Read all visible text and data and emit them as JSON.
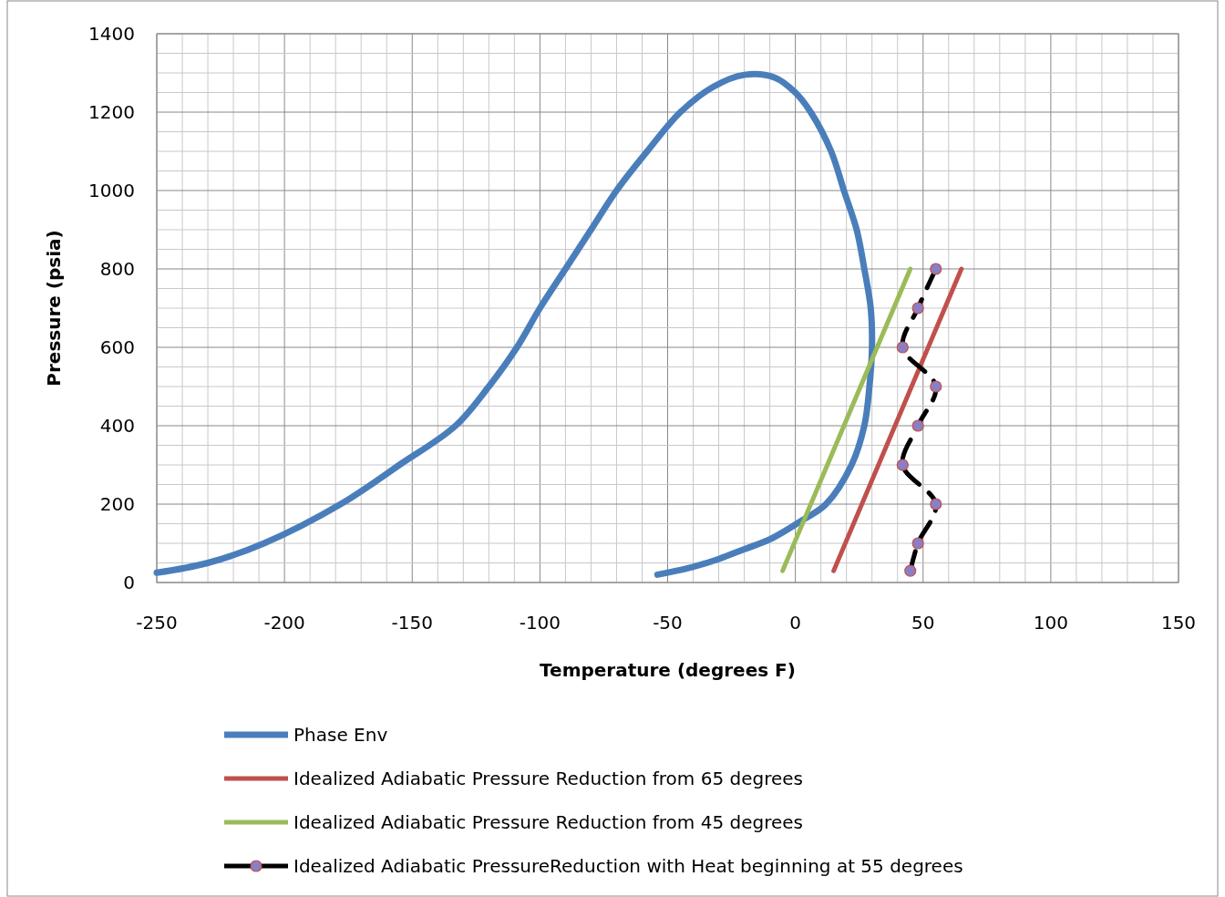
{
  "chart_data": {
    "type": "line",
    "xlabel": "Temperature (degrees F)",
    "ylabel": "Pressure (psia)",
    "xlim": [
      -250,
      150
    ],
    "ylim": [
      0,
      1400
    ],
    "xticks": [
      -250,
      {
        "value": -240,
        "label": null
      },
      {
        "value": -230,
        "label": null
      },
      {
        "value": -220,
        "label": null
      },
      {
        "value": -210,
        "label": null
      },
      -200,
      {
        "value": -190,
        "label": null
      },
      {
        "value": -180,
        "label": null
      },
      {
        "value": -170,
        "label": null
      },
      {
        "value": -160,
        "label": null
      },
      -150,
      {
        "value": -140,
        "label": null
      },
      {
        "value": -130,
        "label": null
      },
      {
        "value": -120,
        "label": null
      },
      {
        "value": -110,
        "label": null
      },
      -100,
      {
        "value": -90,
        "label": null
      },
      {
        "value": -80,
        "label": null
      },
      {
        "value": -70,
        "label": null
      },
      {
        "value": -60,
        "label": null
      },
      -50,
      {
        "value": -40,
        "label": null
      },
      {
        "value": -30,
        "label": null
      },
      {
        "value": -20,
        "label": null
      },
      {
        "value": -10,
        "label": null
      },
      0,
      {
        "value": 10,
        "label": null
      },
      {
        "value": 20,
        "label": null
      },
      {
        "value": 30,
        "label": null
      },
      {
        "value": 40,
        "label": null
      },
      50,
      {
        "value": 60,
        "label": null
      },
      {
        "value": 70,
        "label": null
      },
      {
        "value": 80,
        "label": null
      },
      {
        "value": 90,
        "label": null
      },
      100,
      {
        "value": 110,
        "label": null
      },
      {
        "value": 120,
        "label": null
      },
      {
        "value": 130,
        "label": null
      },
      {
        "value": 140,
        "label": null
      },
      150
    ],
    "yticks": [
      0,
      {
        "value": 50,
        "label": null
      },
      {
        "value": 100,
        "label": null
      },
      {
        "value": 150,
        "label": null
      },
      200,
      {
        "value": 250,
        "label": null
      },
      {
        "value": 300,
        "label": null
      },
      {
        "value": 350,
        "label": null
      },
      400,
      {
        "value": 450,
        "label": null
      },
      {
        "value": 500,
        "label": null
      },
      {
        "value": 550,
        "label": null
      },
      600,
      {
        "value": 650,
        "label": null
      },
      {
        "value": 700,
        "label": null
      },
      {
        "value": 750,
        "label": null
      },
      800,
      {
        "value": 850,
        "label": null
      },
      {
        "value": 900,
        "label": null
      },
      {
        "value": 950,
        "label": null
      },
      1000,
      {
        "value": 1050,
        "label": null
      },
      {
        "value": 1100,
        "label": null
      },
      {
        "value": 1150,
        "label": null
      },
      1200,
      {
        "value": 1250,
        "label": null
      },
      {
        "value": 1300,
        "label": null
      },
      {
        "value": 1350,
        "label": null
      },
      1400
    ],
    "grid": true,
    "legend": "bottom",
    "series": [
      {
        "name": "Phase Env",
        "color": "#4a7ebb",
        "x": [
          -250,
          -230,
          -208,
          -178,
          -155,
          -133,
          -120,
          -109,
          -100,
          -90,
          -80,
          -70,
          -58,
          -45,
          -32,
          -20,
          -8,
          0,
          6,
          14,
          19,
          24,
          27,
          29.5,
          30,
          29,
          27,
          22,
          12,
          3,
          -10,
          -20,
          -30,
          -40,
          -54
        ],
        "values": [
          25,
          50,
          100,
          200,
          300,
          400,
          500,
          600,
          700,
          800,
          900,
          1000,
          1100,
          1200,
          1265,
          1295,
          1288,
          1250,
          1200,
          1100,
          1000,
          900,
          800,
          700,
          600,
          500,
          400,
          300,
          200,
          160,
          110,
          85,
          60,
          40,
          20
        ]
      },
      {
        "name": "Idealized Adiabatic Pressure Reduction from 65 degrees",
        "color": "#c0504d",
        "x": [
          15,
          65
        ],
        "values": [
          30,
          800
        ]
      },
      {
        "name": "Idealized Adiabatic Pressure Reduction from 45 degrees",
        "color": "#9bbb59",
        "x": [
          -5,
          45
        ],
        "values": [
          30,
          800
        ]
      },
      {
        "name": "Idealized Adiabatic PressureReduction with Heat beginning at 55 degrees",
        "color": "#000000",
        "line_style": "dashed",
        "marker": "circle",
        "x": [
          45,
          48,
          55,
          42,
          48,
          55,
          42,
          48,
          55
        ],
        "values": [
          30,
          100,
          200,
          300,
          400,
          500,
          600,
          700,
          800
        ]
      }
    ]
  }
}
